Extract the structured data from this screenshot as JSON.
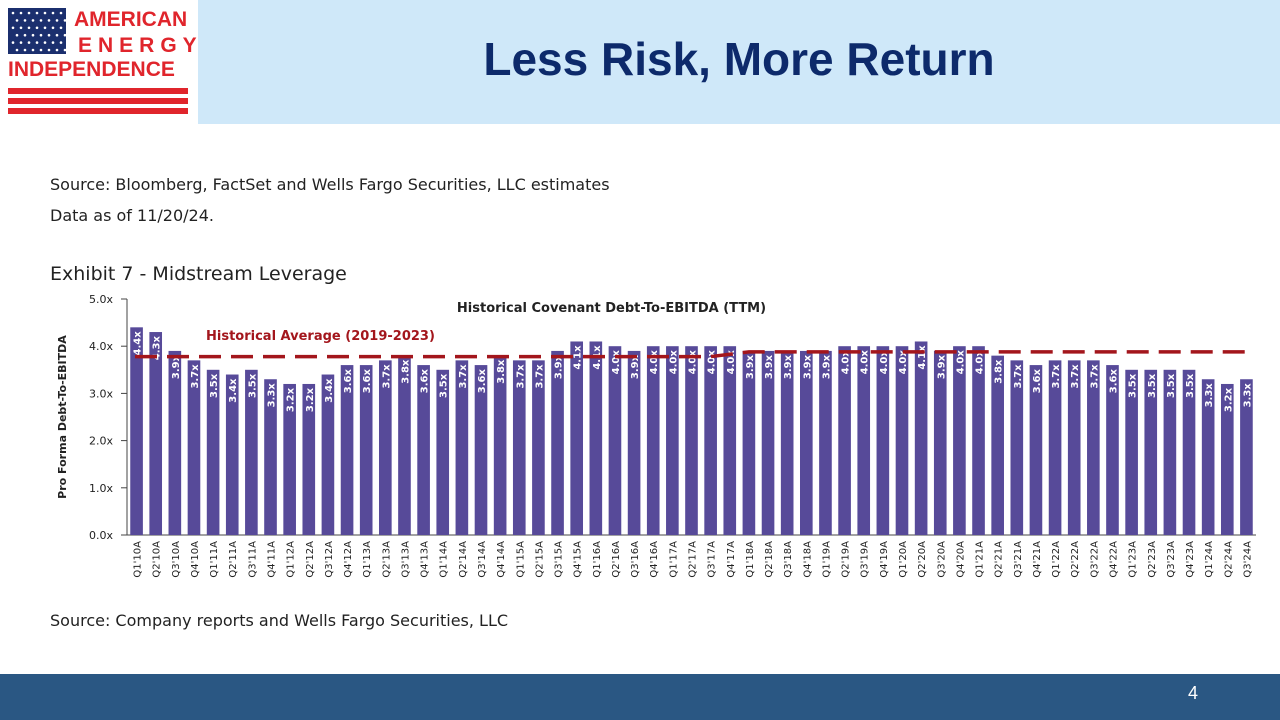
{
  "slide": {
    "title": "Less Risk, More Return",
    "source_top": "Source: Bloomberg, FactSet and Wells Fargo Securities, LLC estimates",
    "data_as_of": "Data as of 11/20/24.",
    "exhibit_title": "Exhibit 7 - Midstream Leverage",
    "source_bottom": "Source: Company reports and Wells Fargo Securities, LLC",
    "page_number": "4"
  },
  "logo": {
    "line1": "AMERICAN",
    "line2": "ENERGY",
    "line3": "INDEPENDENCE",
    "color_red": "#e0252c",
    "color_blue": "#1b2f6e"
  },
  "colors": {
    "header_band": "#cfe8f9",
    "title": "#0d2a6b",
    "footer_band": "#2a5783",
    "bar": "#574a99",
    "average_line": "#a3161c"
  },
  "chart_data": {
    "type": "bar",
    "title": "Historical Covenant Debt-To-EBITDA (TTM)",
    "ylabel": "Pro Forma Debt-To-EBITDA",
    "xlabel": "",
    "ylim": [
      0,
      5
    ],
    "yticks": [
      {
        "value": 0,
        "label": "0.0x"
      },
      {
        "value": 1,
        "label": "1.0x"
      },
      {
        "value": 2,
        "label": "2.0x"
      },
      {
        "value": 3,
        "label": "3.0x"
      },
      {
        "value": 4,
        "label": "4.0x"
      },
      {
        "value": 5,
        "label": "5.0x"
      }
    ],
    "grid": false,
    "categories": [
      "Q1'10A",
      "Q2'10A",
      "Q3'10A",
      "Q4'10A",
      "Q1'11A",
      "Q2'11A",
      "Q3'11A",
      "Q4'11A",
      "Q1'12A",
      "Q2'12A",
      "Q3'12A",
      "Q4'12A",
      "Q1'13A",
      "Q2'13A",
      "Q3'13A",
      "Q4'13A",
      "Q1'14A",
      "Q2'14A",
      "Q3'14A",
      "Q4'14A",
      "Q1'15A",
      "Q2'15A",
      "Q3'15A",
      "Q4'15A",
      "Q1'16A",
      "Q2'16A",
      "Q3'16A",
      "Q4'16A",
      "Q1'17A",
      "Q2'17A",
      "Q3'17A",
      "Q4'17A",
      "Q1'18A",
      "Q2'18A",
      "Q3'18A",
      "Q4'18A",
      "Q1'19A",
      "Q2'19A",
      "Q3'19A",
      "Q4'19A",
      "Q1'20A",
      "Q2'20A",
      "Q3'20A",
      "Q4'20A",
      "Q1'21A",
      "Q2'21A",
      "Q3'21A",
      "Q4'21A",
      "Q1'22A",
      "Q2'22A",
      "Q3'22A",
      "Q4'22A",
      "Q1'23A",
      "Q2'23A",
      "Q3'23A",
      "Q4'23A",
      "Q1'24A",
      "Q2'24A",
      "Q3'24A"
    ],
    "values": [
      4.4,
      4.3,
      3.9,
      3.7,
      3.5,
      3.4,
      3.5,
      3.3,
      3.2,
      3.2,
      3.4,
      3.6,
      3.6,
      3.7,
      3.8,
      3.6,
      3.5,
      3.7,
      3.6,
      3.8,
      3.7,
      3.7,
      3.9,
      4.1,
      4.1,
      4.0,
      3.9,
      4.0,
      4.0,
      4.0,
      4.0,
      4.0,
      3.9,
      3.9,
      3.9,
      3.9,
      3.9,
      4.0,
      4.0,
      4.0,
      4.0,
      4.1,
      3.9,
      4.0,
      4.0,
      3.8,
      3.7,
      3.6,
      3.7,
      3.7,
      3.7,
      3.6,
      3.5,
      3.5,
      3.5,
      3.5,
      3.3,
      3.2,
      3.3
    ],
    "data_labels": [
      "4.4x",
      "4.3x",
      "3.9x",
      "3.7x",
      "3.5x",
      "3.4x",
      "3.5x",
      "3.3x",
      "3.2x",
      "3.2x",
      "3.4x",
      "3.6x",
      "3.6x",
      "3.7x",
      "3.8x",
      "3.6x",
      "3.5x",
      "3.7x",
      "3.6x",
      "3.8x",
      "3.7x",
      "3.7x",
      "3.9x",
      "4.1x",
      "4.1x",
      "4.0x",
      "3.9x",
      "4.0x",
      "4.0x",
      "4.0x",
      "4.0x",
      "4.0x",
      "3.9x",
      "3.9x",
      "3.9x",
      "3.9x",
      "3.9x",
      "4.0x",
      "4.0x",
      "4.0x",
      "4.0x",
      "4.1x",
      "3.9x",
      "4.0x",
      "4.0x",
      "3.8x",
      "3.7x",
      "3.6x",
      "3.7x",
      "3.7x",
      "3.7x",
      "3.6x",
      "3.5x",
      "3.5x",
      "3.5x",
      "3.5x",
      "3.3x",
      "3.2x",
      "3.3x"
    ],
    "reference_line": {
      "label": "Historical Average (2019-2023)",
      "style": "dashed",
      "points": [
        {
          "category": "Q1'10A",
          "value": 3.78
        },
        {
          "category": "Q3'17A",
          "value": 3.78
        },
        {
          "category": "Q1'18A",
          "value": 3.88
        },
        {
          "category": "Q3'24A",
          "value": 3.88
        }
      ]
    }
  }
}
